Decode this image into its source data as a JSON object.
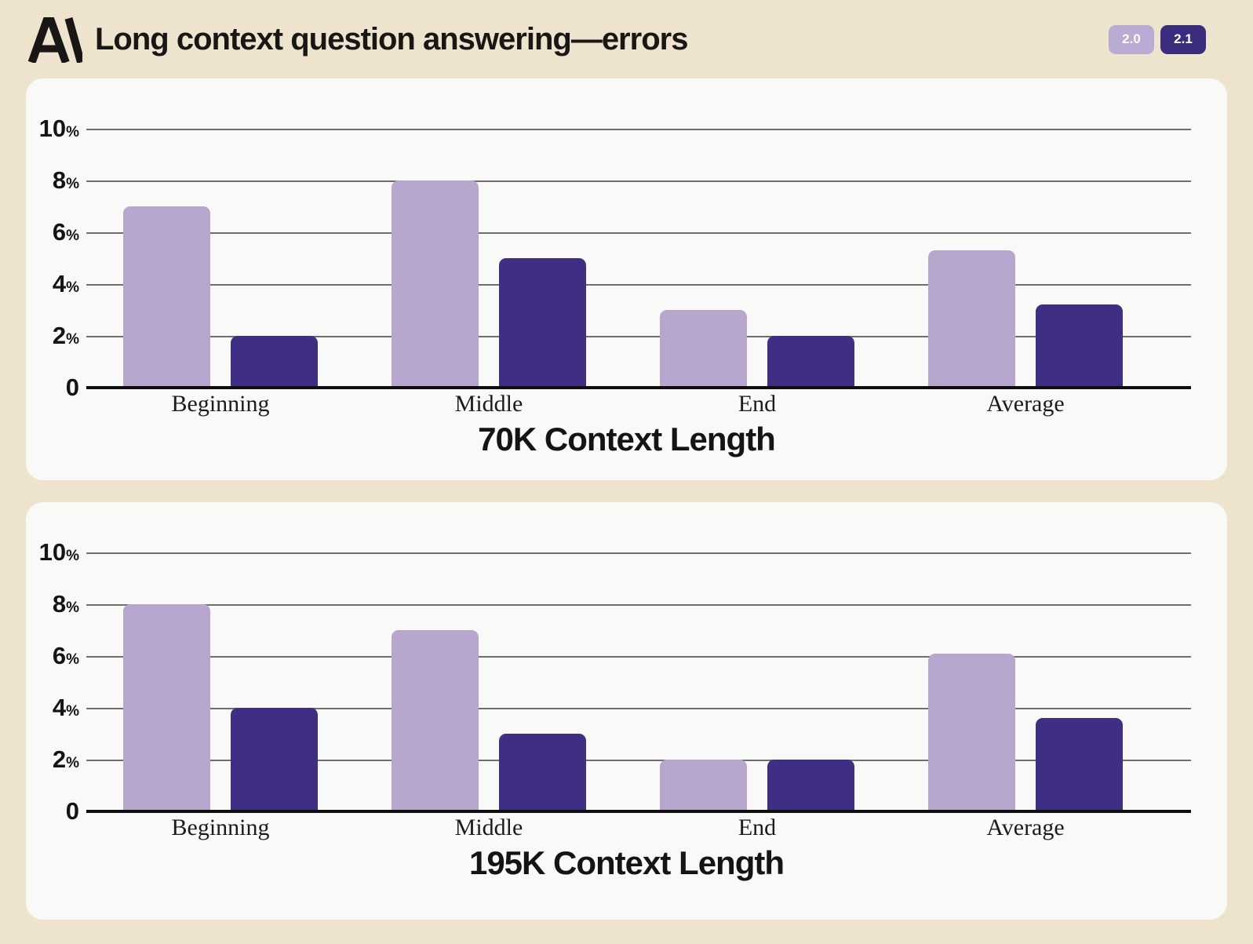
{
  "header": {
    "logo": "anthropic-logomark",
    "title": "Long context question answering—errors",
    "legend": [
      {
        "label": "2.0",
        "color": "#b9abd3"
      },
      {
        "label": "2.1",
        "color": "#3b2d7e"
      }
    ]
  },
  "colors": {
    "background": "#eee4cd",
    "panel": "#f9f9f7",
    "light_purple": "#b7a6ce",
    "dark_purple": "#3f2e84",
    "gridline": "#6f6e6c",
    "axis": "#0e0e0e",
    "text": "#181715"
  },
  "chart_data": [
    {
      "type": "bar",
      "title": "70K Context Length",
      "categories": [
        "Beginning",
        "Middle",
        "End",
        "Average"
      ],
      "series": [
        {
          "name": "2.0",
          "values": [
            7,
            8,
            3,
            5.3
          ]
        },
        {
          "name": "2.1",
          "values": [
            2,
            5,
            2,
            3.2
          ]
        }
      ],
      "ylim": [
        0,
        10
      ],
      "yticks": [
        {
          "num": "10",
          "suffix": "%"
        },
        {
          "num": "8",
          "suffix": "%"
        },
        {
          "num": "6",
          "suffix": "%"
        },
        {
          "num": "4",
          "suffix": "%"
        },
        {
          "num": "2",
          "suffix": "%"
        },
        {
          "num": "0",
          "suffix": ""
        }
      ],
      "grid": true,
      "legend_position": "top-right"
    },
    {
      "type": "bar",
      "title": "195K Context Length",
      "categories": [
        "Beginning",
        "Middle",
        "End",
        "Average"
      ],
      "series": [
        {
          "name": "2.0",
          "values": [
            8,
            7,
            2,
            6.1
          ]
        },
        {
          "name": "2.1",
          "values": [
            4,
            3,
            2,
            3.6
          ]
        }
      ],
      "ylim": [
        0,
        10
      ],
      "yticks": [
        {
          "num": "10",
          "suffix": "%"
        },
        {
          "num": "8",
          "suffix": "%"
        },
        {
          "num": "6",
          "suffix": "%"
        },
        {
          "num": "4",
          "suffix": "%"
        },
        {
          "num": "2",
          "suffix": "%"
        },
        {
          "num": "0",
          "suffix": ""
        }
      ],
      "grid": true,
      "legend_position": "top-right"
    }
  ]
}
